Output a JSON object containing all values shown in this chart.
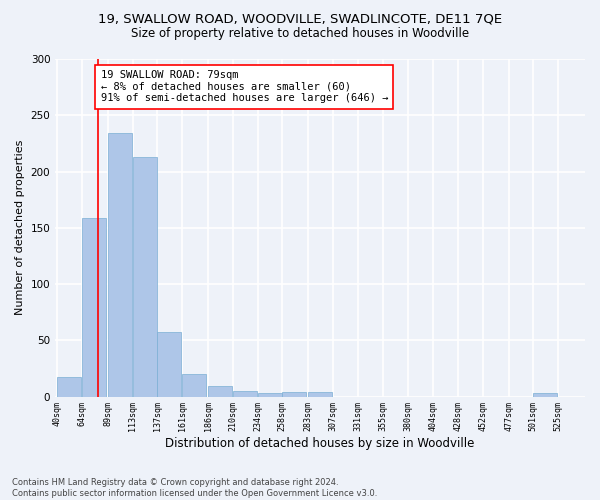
{
  "title1": "19, SWALLOW ROAD, WOODVILLE, SWADLINCOTE, DE11 7QE",
  "title2": "Size of property relative to detached houses in Woodville",
  "xlabel": "Distribution of detached houses by size in Woodville",
  "ylabel": "Number of detached properties",
  "categories": [
    "40sqm",
    "64sqm",
    "89sqm",
    "113sqm",
    "137sqm",
    "161sqm",
    "186sqm",
    "210sqm",
    "234sqm",
    "258sqm",
    "283sqm",
    "307sqm",
    "331sqm",
    "355sqm",
    "380sqm",
    "404sqm",
    "428sqm",
    "452sqm",
    "477sqm",
    "501sqm",
    "525sqm"
  ],
  "values": [
    17,
    159,
    234,
    213,
    57,
    20,
    9,
    5,
    3,
    4,
    4,
    0,
    0,
    0,
    0,
    0,
    0,
    0,
    0,
    3,
    0
  ],
  "bar_color": "#aec6e8",
  "bar_edge_color": "#7bafd4",
  "vline_x": 79,
  "vline_color": "red",
  "annotation_text": "19 SWALLOW ROAD: 79sqm\n← 8% of detached houses are smaller (60)\n91% of semi-detached houses are larger (646) →",
  "annotation_box_color": "white",
  "annotation_box_edge": "red",
  "ylim": [
    0,
    300
  ],
  "yticks": [
    0,
    50,
    100,
    150,
    200,
    250,
    300
  ],
  "footnote": "Contains HM Land Registry data © Crown copyright and database right 2024.\nContains public sector information licensed under the Open Government Licence v3.0.",
  "background_color": "#eef2f9",
  "grid_color": "white",
  "title1_fontsize": 9.5,
  "title2_fontsize": 8.5,
  "xlabel_fontsize": 8.5,
  "ylabel_fontsize": 8,
  "footnote_fontsize": 6,
  "annotation_fontsize": 7.5,
  "bin_width": 24
}
